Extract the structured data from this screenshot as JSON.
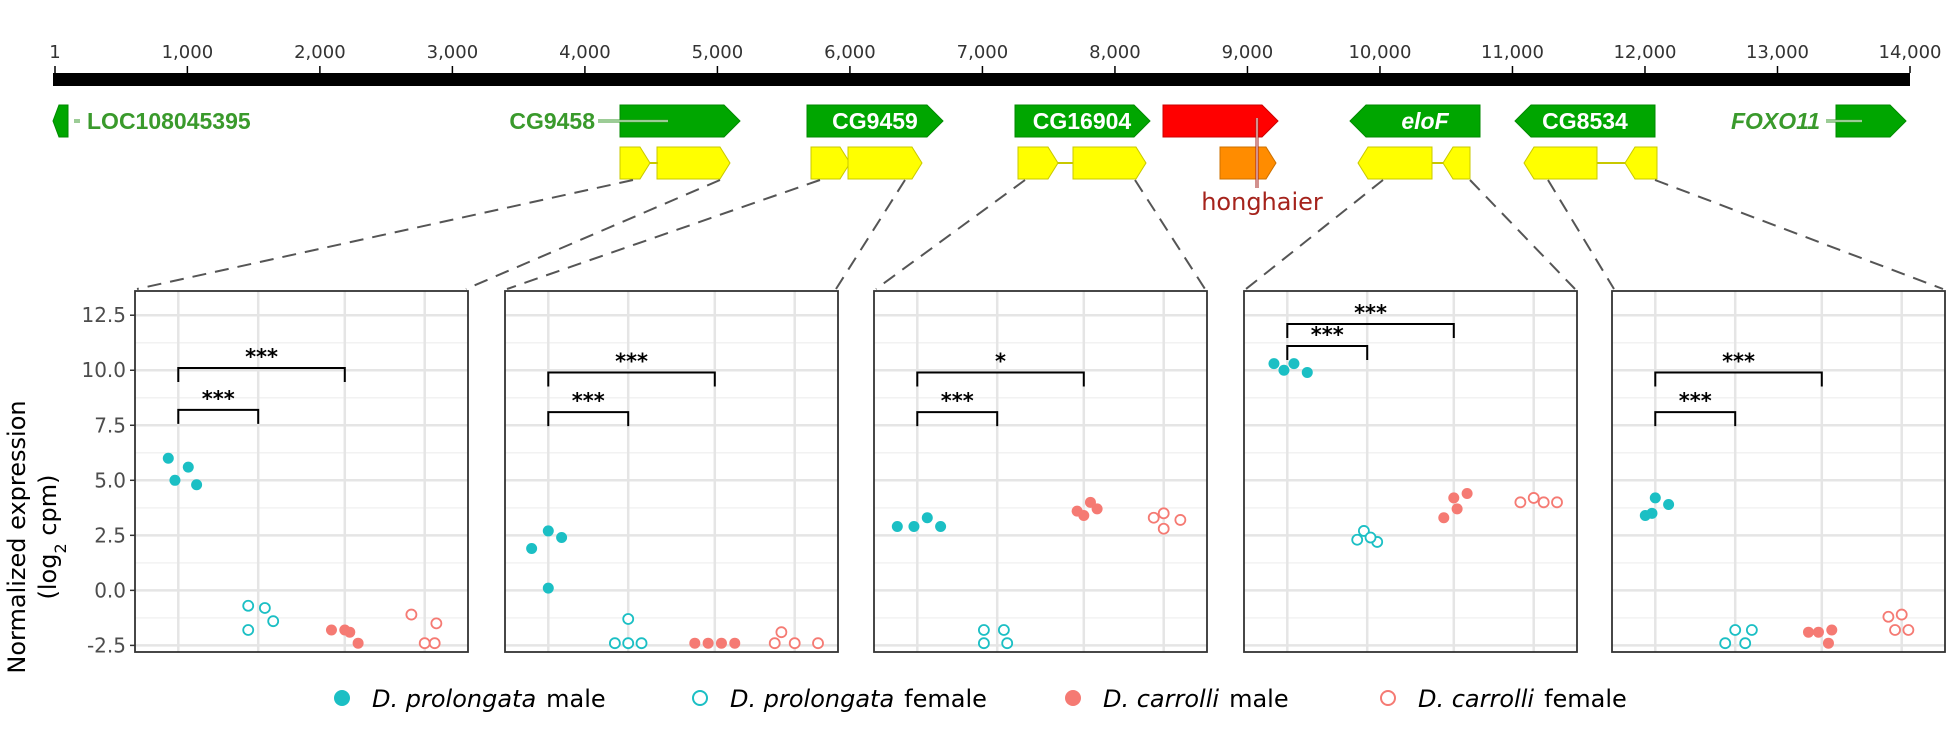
{
  "genome_track": {
    "ticks": [
      {
        "pos": 1,
        "label": "1"
      },
      {
        "pos": 1000,
        "label": "1,000"
      },
      {
        "pos": 2000,
        "label": "2,000"
      },
      {
        "pos": 3000,
        "label": "3,000"
      },
      {
        "pos": 4000,
        "label": "4,000"
      },
      {
        "pos": 5000,
        "label": "5,000"
      },
      {
        "pos": 6000,
        "label": "6,000"
      },
      {
        "pos": 7000,
        "label": "7,000"
      },
      {
        "pos": 8000,
        "label": "8,000"
      },
      {
        "pos": 9000,
        "label": "9,000"
      },
      {
        "pos": 10000,
        "label": "10,000"
      },
      {
        "pos": 11000,
        "label": "11,000"
      },
      {
        "pos": 12000,
        "label": "12,000"
      },
      {
        "pos": 13000,
        "label": "13,000"
      },
      {
        "pos": 14000,
        "label": "14,000"
      }
    ],
    "range": [
      1,
      14000
    ],
    "genes": [
      {
        "name": "LOC108045395",
        "start": 1,
        "end": 100,
        "strand": "-",
        "italic": false
      },
      {
        "name": "CG9458",
        "start": 4300,
        "end": 5200,
        "strand": "+",
        "italic": false
      },
      {
        "name": "CG9459",
        "start": 5700,
        "end": 6700,
        "strand": "+",
        "italic": false
      },
      {
        "name": "CG16904",
        "start": 7200,
        "end": 8300,
        "strand": "+",
        "italic": false
      },
      {
        "name": "eloF",
        "start": 9700,
        "end": 10650,
        "strand": "-",
        "italic": true
      },
      {
        "name": "CG8534",
        "start": 11100,
        "end": 12150,
        "strand": "-",
        "italic": false
      },
      {
        "name": "FOXO11",
        "start": 13000,
        "end": 13500,
        "strand": "+",
        "italic": true
      }
    ],
    "te": {
      "name": "honghaier",
      "color_outer": "#ff0000",
      "color_inner": "#ff8c00"
    },
    "colors": {
      "gene": "#00a600",
      "gene_label": "#3a9a2c",
      "exon": "#ffff00",
      "te_label": "#a5231c"
    }
  },
  "chart_data": [
    {
      "type": "scatter",
      "gene": "CG9458",
      "ylabel": "Normalized expression (log2 cpm)",
      "ylim": [
        -2.8,
        13.6
      ],
      "yticks": [
        "12.5",
        "10.0",
        "7.5",
        "5.0",
        "2.5",
        "0.0",
        "-2.5"
      ],
      "groups": [
        "D. prolongata male",
        "D. prolongata female",
        "D. carrolli male",
        "D. carrolli female"
      ],
      "series": [
        {
          "name": "D. prolongata male",
          "values": [
            6.0,
            5.0,
            5.6,
            4.8
          ]
        },
        {
          "name": "D. prolongata female",
          "values": [
            -0.7,
            -0.8,
            -1.4,
            -1.8
          ]
        },
        {
          "name": "D. carrolli male",
          "values": [
            -1.8,
            -1.8,
            -2.4,
            -1.9
          ]
        },
        {
          "name": "D. carrolli female",
          "values": [
            -1.1,
            -2.4,
            -1.5,
            -2.4
          ]
        }
      ],
      "significance": [
        {
          "from": 0,
          "to": 1,
          "label": "***",
          "y": 8.2
        },
        {
          "from": 0,
          "to": 2,
          "label": "***",
          "y": 10.1
        }
      ]
    },
    {
      "type": "scatter",
      "gene": "CG9459",
      "ylim": [
        -2.8,
        13.6
      ],
      "series": [
        {
          "name": "D. prolongata male",
          "values": [
            1.9,
            2.7,
            2.4,
            0.1
          ]
        },
        {
          "name": "D. prolongata female",
          "values": [
            -1.3,
            -2.4,
            -2.4,
            -2.4
          ]
        },
        {
          "name": "D. carrolli male",
          "values": [
            -2.4,
            -2.4,
            -2.4,
            -2.4
          ]
        },
        {
          "name": "D. carrolli female",
          "values": [
            -2.4,
            -1.9,
            -2.4,
            -2.4
          ]
        }
      ],
      "significance": [
        {
          "from": 0,
          "to": 1,
          "label": "***",
          "y": 8.1
        },
        {
          "from": 0,
          "to": 2,
          "label": "***",
          "y": 9.9
        }
      ]
    },
    {
      "type": "scatter",
      "gene": "CG16904",
      "ylim": [
        -2.8,
        13.6
      ],
      "series": [
        {
          "name": "D. prolongata male",
          "values": [
            2.9,
            2.9,
            3.3,
            2.9
          ]
        },
        {
          "name": "D. prolongata female",
          "values": [
            -1.8,
            -2.4,
            -1.8,
            -2.4
          ]
        },
        {
          "name": "D. carrolli male",
          "values": [
            3.6,
            4.0,
            3.4,
            3.7
          ]
        },
        {
          "name": "D. carrolli female",
          "values": [
            3.3,
            2.8,
            3.5,
            3.2
          ]
        }
      ],
      "significance": [
        {
          "from": 0,
          "to": 1,
          "label": "***",
          "y": 8.1
        },
        {
          "from": 0,
          "to": 2,
          "label": "*",
          "y": 9.9
        }
      ]
    },
    {
      "type": "scatter",
      "gene": "eloF",
      "ylim": [
        -2.8,
        13.6
      ],
      "series": [
        {
          "name": "D. prolongata male",
          "values": [
            10.3,
            10.0,
            10.3,
            9.9
          ]
        },
        {
          "name": "D. prolongata female",
          "values": [
            2.3,
            2.7,
            2.2,
            2.4
          ]
        },
        {
          "name": "D. carrolli male",
          "values": [
            3.3,
            4.2,
            3.7,
            4.4
          ]
        },
        {
          "name": "D. carrolli female",
          "values": [
            4.0,
            4.2,
            4.0,
            4.0
          ]
        }
      ],
      "significance": [
        {
          "from": 0,
          "to": 1,
          "label": "***",
          "y": 11.1
        },
        {
          "from": 0,
          "to": 2,
          "label": "***",
          "y": 12.1
        }
      ]
    },
    {
      "type": "scatter",
      "gene": "CG8534",
      "ylim": [
        -2.8,
        13.6
      ],
      "series": [
        {
          "name": "D. prolongata male",
          "values": [
            3.4,
            4.2,
            3.5,
            3.9
          ]
        },
        {
          "name": "D. prolongata female",
          "values": [
            -2.4,
            -1.8,
            -2.4,
            -1.8
          ]
        },
        {
          "name": "D. carrolli male",
          "values": [
            -1.9,
            -1.9,
            -2.4,
            -1.8
          ]
        },
        {
          "name": "D. carrolli female",
          "values": [
            -1.2,
            -1.1,
            -1.8,
            -1.8
          ]
        }
      ],
      "significance": [
        {
          "from": 0,
          "to": 1,
          "label": "***",
          "y": 8.1
        },
        {
          "from": 0,
          "to": 2,
          "label": "***",
          "y": 9.9
        }
      ]
    }
  ],
  "ylabel_line1": "Normalized expression",
  "ylabel_line2_pre": "(log",
  "ylabel_line2_sub": "2",
  "ylabel_line2_post": " cpm)",
  "legend": {
    "entries": [
      {
        "species": "D. prolongata",
        "sex": "male",
        "filled": true,
        "color": "#1bbfc4"
      },
      {
        "species": "D. prolongata",
        "sex": "female",
        "filled": false,
        "color": "#1bbfc4"
      },
      {
        "species": "D. carrolli",
        "sex": "male",
        "filled": true,
        "color": "#f57a73"
      },
      {
        "species": "D. carrolli",
        "sex": "female",
        "filled": false,
        "color": "#f57a73"
      }
    ]
  }
}
